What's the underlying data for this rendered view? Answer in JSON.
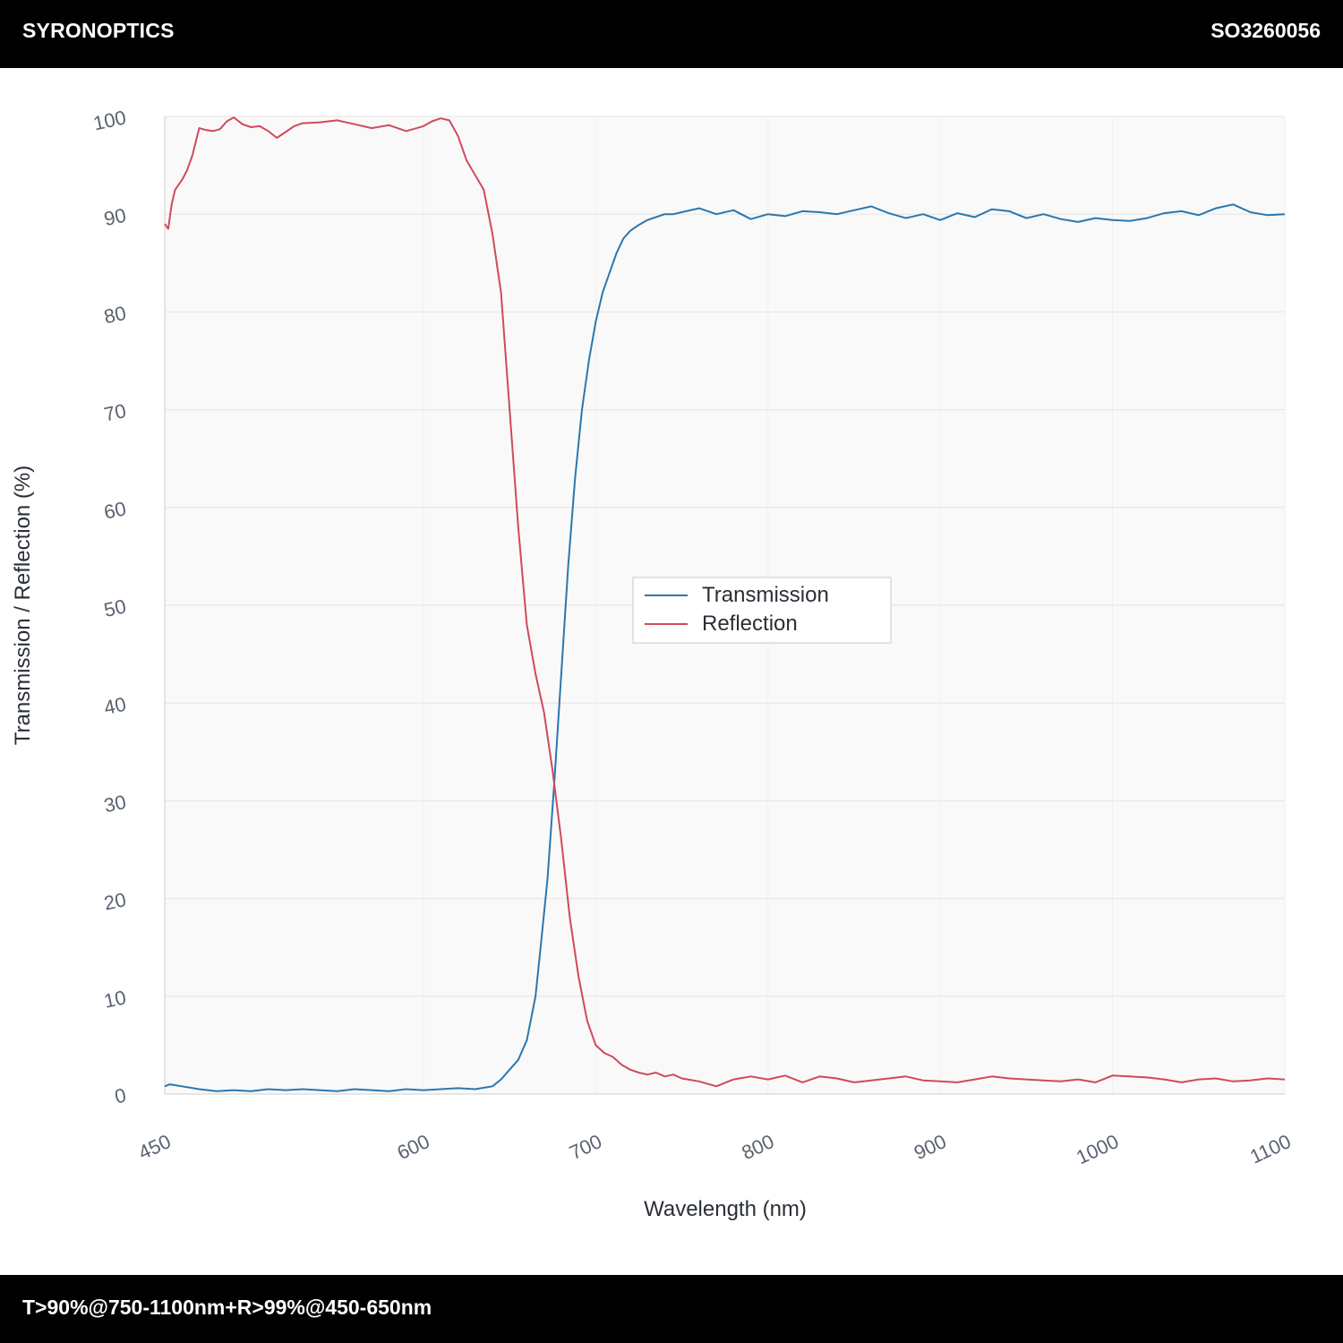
{
  "header": {
    "brand": "SYRONOPTICS",
    "part_number": "SO3260056"
  },
  "footer": {
    "spec": "T>90%@750-1100nm+R>99%@450-650nm"
  },
  "colors": {
    "transmission": "#2a77b0",
    "reflection": "#cf4a5c",
    "plot_bg": "#f9f9f9",
    "grid": "#e4e4e4"
  },
  "chart_data": {
    "type": "line",
    "title": "",
    "xlabel": "Wavelength (nm)",
    "ylabel": "Transmission / Reflection (%)",
    "xlim": [
      450,
      1100
    ],
    "ylim": [
      0,
      100
    ],
    "x_ticks": [
      450,
      600,
      700,
      800,
      900,
      1000,
      1100
    ],
    "y_ticks": [
      0,
      10,
      20,
      30,
      40,
      50,
      60,
      70,
      80,
      90,
      100
    ],
    "grid": true,
    "legend": {
      "placement": "center",
      "entries": [
        "Transmission",
        "Reflection"
      ]
    },
    "series": [
      {
        "name": "Transmission",
        "color": "#2a77b0",
        "x": [
          450,
          453,
          460,
          470,
          480,
          490,
          500,
          510,
          520,
          530,
          540,
          550,
          560,
          570,
          580,
          590,
          600,
          610,
          620,
          630,
          640,
          645,
          650,
          655,
          660,
          665,
          668,
          672,
          676,
          680,
          684,
          688,
          692,
          696,
          700,
          704,
          708,
          712,
          716,
          720,
          725,
          730,
          735,
          740,
          745,
          750,
          760,
          770,
          780,
          790,
          800,
          810,
          820,
          830,
          840,
          850,
          860,
          870,
          880,
          890,
          900,
          910,
          920,
          930,
          940,
          950,
          960,
          970,
          980,
          990,
          1000,
          1010,
          1020,
          1030,
          1040,
          1050,
          1060,
          1070,
          1080,
          1090,
          1100
        ],
        "y": [
          0.8,
          1.0,
          0.8,
          0.5,
          0.3,
          0.4,
          0.3,
          0.5,
          0.4,
          0.5,
          0.4,
          0.3,
          0.5,
          0.4,
          0.3,
          0.5,
          0.4,
          0.5,
          0.6,
          0.5,
          0.8,
          1.5,
          2.5,
          3.5,
          5.5,
          10,
          15,
          22,
          32,
          43,
          54,
          63,
          70,
          75,
          79,
          82,
          84,
          86,
          87.5,
          88.3,
          88.9,
          89.4,
          89.7,
          90.0,
          90.0,
          90.2,
          90.6,
          90.0,
          90.4,
          89.5,
          90.0,
          89.8,
          90.3,
          90.2,
          90.0,
          90.4,
          90.8,
          90.1,
          89.6,
          90.0,
          89.4,
          90.1,
          89.7,
          90.5,
          90.3,
          89.6,
          90.0,
          89.5,
          89.2,
          89.6,
          89.4,
          89.3,
          89.6,
          90.1,
          90.3,
          89.9,
          90.6,
          91.0,
          90.2,
          89.9,
          90.0
        ]
      },
      {
        "name": "Reflection",
        "color": "#cf4a5c",
        "x": [
          450,
          452,
          454,
          456,
          458,
          460,
          463,
          466,
          470,
          474,
          478,
          482,
          486,
          490,
          495,
          500,
          505,
          510,
          515,
          520,
          525,
          530,
          540,
          550,
          560,
          570,
          580,
          590,
          600,
          605,
          610,
          615,
          620,
          625,
          630,
          635,
          640,
          645,
          650,
          655,
          660,
          665,
          670,
          675,
          680,
          685,
          690,
          695,
          700,
          705,
          710,
          715,
          720,
          725,
          730,
          735,
          740,
          745,
          750,
          760,
          770,
          780,
          790,
          800,
          810,
          820,
          830,
          840,
          850,
          860,
          870,
          880,
          890,
          900,
          910,
          920,
          930,
          940,
          950,
          960,
          970,
          980,
          990,
          1000,
          1010,
          1020,
          1030,
          1040,
          1050,
          1060,
          1070,
          1080,
          1090,
          1100
        ],
        "y": [
          89,
          88.5,
          91,
          92.5,
          93,
          93.5,
          94.5,
          96,
          98.8,
          98.6,
          98.5,
          98.7,
          99.5,
          99.9,
          99.2,
          98.9,
          99.0,
          98.5,
          97.8,
          98.4,
          99.0,
          99.3,
          99.4,
          99.6,
          99.2,
          98.8,
          99.1,
          98.5,
          99.0,
          99.5,
          99.8,
          99.6,
          98.0,
          95.5,
          94.0,
          92.5,
          88.0,
          82.0,
          70.0,
          58.0,
          48.0,
          43.0,
          39.0,
          33.0,
          26.0,
          18.0,
          12.0,
          7.5,
          5.0,
          4.2,
          3.8,
          3.0,
          2.5,
          2.2,
          2.0,
          2.2,
          1.8,
          2.0,
          1.6,
          1.3,
          0.8,
          1.5,
          1.8,
          1.5,
          1.9,
          1.2,
          1.8,
          1.6,
          1.2,
          1.4,
          1.6,
          1.8,
          1.4,
          1.3,
          1.2,
          1.5,
          1.8,
          1.6,
          1.5,
          1.4,
          1.3,
          1.5,
          1.2,
          1.9,
          1.8,
          1.7,
          1.5,
          1.2,
          1.5,
          1.6,
          1.3,
          1.4,
          1.6,
          1.5
        ]
      }
    ]
  }
}
